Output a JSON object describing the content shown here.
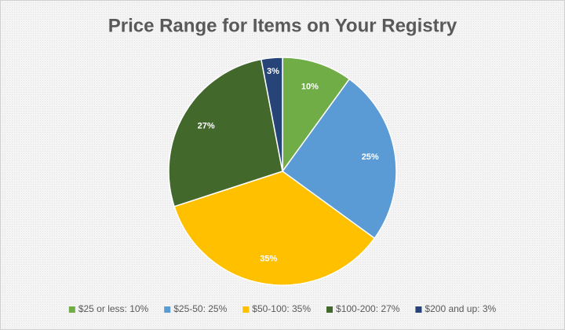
{
  "chart_data": {
    "type": "pie",
    "title": "Price Range for Items on Your Registry",
    "categories": [
      "$25 or less: 10%",
      "$25-50: 25%",
      "$50-100: 35%",
      "$100-200: 27%",
      "$200 and up: 3%"
    ],
    "values": [
      10,
      25,
      35,
      27,
      3
    ],
    "value_labels": [
      "10%",
      "25%",
      "35%",
      "27%",
      "3%"
    ],
    "colors": [
      "#70ad47",
      "#5b9bd5",
      "#ffc000",
      "#43682b",
      "#264478"
    ],
    "legend": "bottom"
  }
}
